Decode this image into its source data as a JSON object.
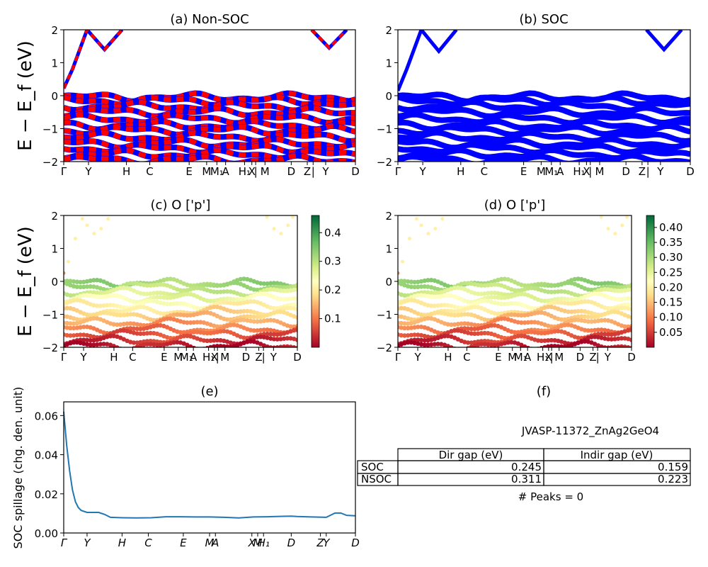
{
  "chart_data": [
    {
      "id": "a",
      "type": "line",
      "title": "(a) Non-SOC",
      "ylabel": "E − E_f (eV)",
      "ylim": [
        -2,
        2
      ],
      "yticks": [
        "−2",
        "−1",
        "0",
        "1",
        "2"
      ],
      "kpath_labels": [
        "Γ",
        "Y",
        "H",
        "C",
        "E",
        "M",
        "M₁",
        "A",
        "H₁",
        "X",
        "|",
        "M",
        "D",
        "Z",
        "|",
        "Y",
        "D"
      ],
      "series_colors": [
        "#ff0000",
        "#0000ff"
      ],
      "bands": {
        "conduction": [
          [
            0,
            0.22
          ],
          [
            0.03,
            0.8
          ],
          [
            0.08,
            2.0
          ],
          [
            0.14,
            1.4
          ],
          [
            0.2,
            2.0
          ]
        ],
        "conduction_right": [
          [
            0.85,
            2.0
          ],
          [
            0.91,
            1.45
          ],
          [
            0.97,
            2.0
          ]
        ],
        "valence_levels": [
          -0.05,
          -0.15,
          -0.32,
          -0.5,
          -0.7,
          -0.9,
          -1.05,
          -1.25,
          -1.45,
          -1.6,
          -1.78,
          -1.95
        ]
      }
    },
    {
      "id": "b",
      "type": "line",
      "title": "(b) SOC",
      "ylim": [
        -2,
        2
      ],
      "yticks": [
        "−2",
        "−1",
        "0",
        "1",
        "2"
      ],
      "kpath_labels": [
        "Γ",
        "Y",
        "H",
        "C",
        "E",
        "M",
        "M₁",
        "A",
        "H₁",
        "X",
        "|",
        "M",
        "D",
        "Z",
        "|",
        "Y",
        "D"
      ],
      "series_colors": [
        "#0000ff"
      ],
      "bands": {
        "conduction": [
          [
            0,
            0.15
          ],
          [
            0.03,
            0.8
          ],
          [
            0.08,
            2.0
          ],
          [
            0.14,
            1.35
          ],
          [
            0.2,
            2.0
          ]
        ],
        "conduction_right": [
          [
            0.85,
            2.0
          ],
          [
            0.91,
            1.4
          ],
          [
            0.97,
            2.0
          ]
        ],
        "valence_levels": [
          -0.05,
          -0.15,
          -0.32,
          -0.5,
          -0.7,
          -0.9,
          -1.05,
          -1.25,
          -1.45,
          -1.6,
          -1.78,
          -1.95
        ]
      }
    },
    {
      "id": "c",
      "type": "scatter",
      "title": "(c)  O ['p']",
      "ylabel": "E − E_f (eV)",
      "ylim": [
        -2,
        2
      ],
      "yticks": [
        "−2",
        "−1",
        "0",
        "1",
        "2"
      ],
      "kpath_labels": [
        "Γ",
        "Y",
        "H",
        "C",
        "E",
        "M",
        "M₁",
        "A",
        "H₁",
        "X",
        "|",
        "M",
        "D",
        "Z",
        "|",
        "Y",
        "D"
      ],
      "colorbar_ticks": [
        "0.1",
        "0.2",
        "0.3",
        "0.4"
      ],
      "colorbar_range": [
        0,
        0.46
      ],
      "colormap": "RdYlGn"
    },
    {
      "id": "d",
      "type": "scatter",
      "title": "(d) O ['p']",
      "ylim": [
        -2,
        2
      ],
      "yticks": [
        "−2",
        "−1",
        "0",
        "1",
        "2"
      ],
      "kpath_labels": [
        "Γ",
        "Y",
        "H",
        "C",
        "E",
        "M",
        "M₁",
        "A",
        "H₁",
        "X",
        "|",
        "M",
        "D",
        "Z",
        "|",
        "Y",
        "D"
      ],
      "colorbar_ticks": [
        "0.05",
        "0.10",
        "0.15",
        "0.20",
        "0.25",
        "0.30",
        "0.35",
        "0.40"
      ],
      "colorbar_range": [
        0,
        0.44
      ],
      "colormap": "RdYlGn"
    },
    {
      "id": "e",
      "type": "line",
      "title": "(e)",
      "ylabel": "SOC spillage (chg. den. unit)",
      "ylim": [
        0,
        0.067
      ],
      "yticks": [
        "0.00",
        "0.02",
        "0.04",
        "0.06"
      ],
      "kpath_labels": [
        "Γ",
        "Y",
        "H",
        "C",
        "E",
        "M",
        "A",
        "X",
        "M",
        "H₁",
        "D",
        "Z",
        "Y",
        "D"
      ],
      "series_colors": [
        "#1f77b4"
      ],
      "x": [
        0,
        0.01,
        0.02,
        0.03,
        0.04,
        0.05,
        0.06,
        0.08,
        0.1,
        0.12,
        0.14,
        0.16,
        0.2,
        0.25,
        0.3,
        0.35,
        0.4,
        0.45,
        0.5,
        0.55,
        0.6,
        0.65,
        0.7,
        0.75,
        0.78,
        0.8,
        0.85,
        0.9,
        0.93,
        0.95,
        0.97,
        1.0
      ],
      "values": [
        0.062,
        0.045,
        0.032,
        0.022,
        0.016,
        0.013,
        0.0115,
        0.0105,
        0.0105,
        0.0105,
        0.0095,
        0.008,
        0.0078,
        0.0077,
        0.0078,
        0.0083,
        0.0083,
        0.0082,
        0.0082,
        0.008,
        0.0077,
        0.0082,
        0.0083,
        0.0085,
        0.0086,
        0.0084,
        0.0082,
        0.008,
        0.0102,
        0.0102,
        0.009,
        0.0088
      ]
    }
  ],
  "panel_f": {
    "title": "(f)",
    "material": "JVASP-11372_ZnAg2GeO4",
    "headers": [
      "Dir gap (eV)",
      "Indir gap (eV)"
    ],
    "rows": [
      {
        "label": "SOC",
        "dir": "0.245",
        "indir": "0.159"
      },
      {
        "label": "NSOC",
        "dir": "0.311",
        "indir": "0.223"
      }
    ],
    "peaks": "# Peaks = 0"
  }
}
